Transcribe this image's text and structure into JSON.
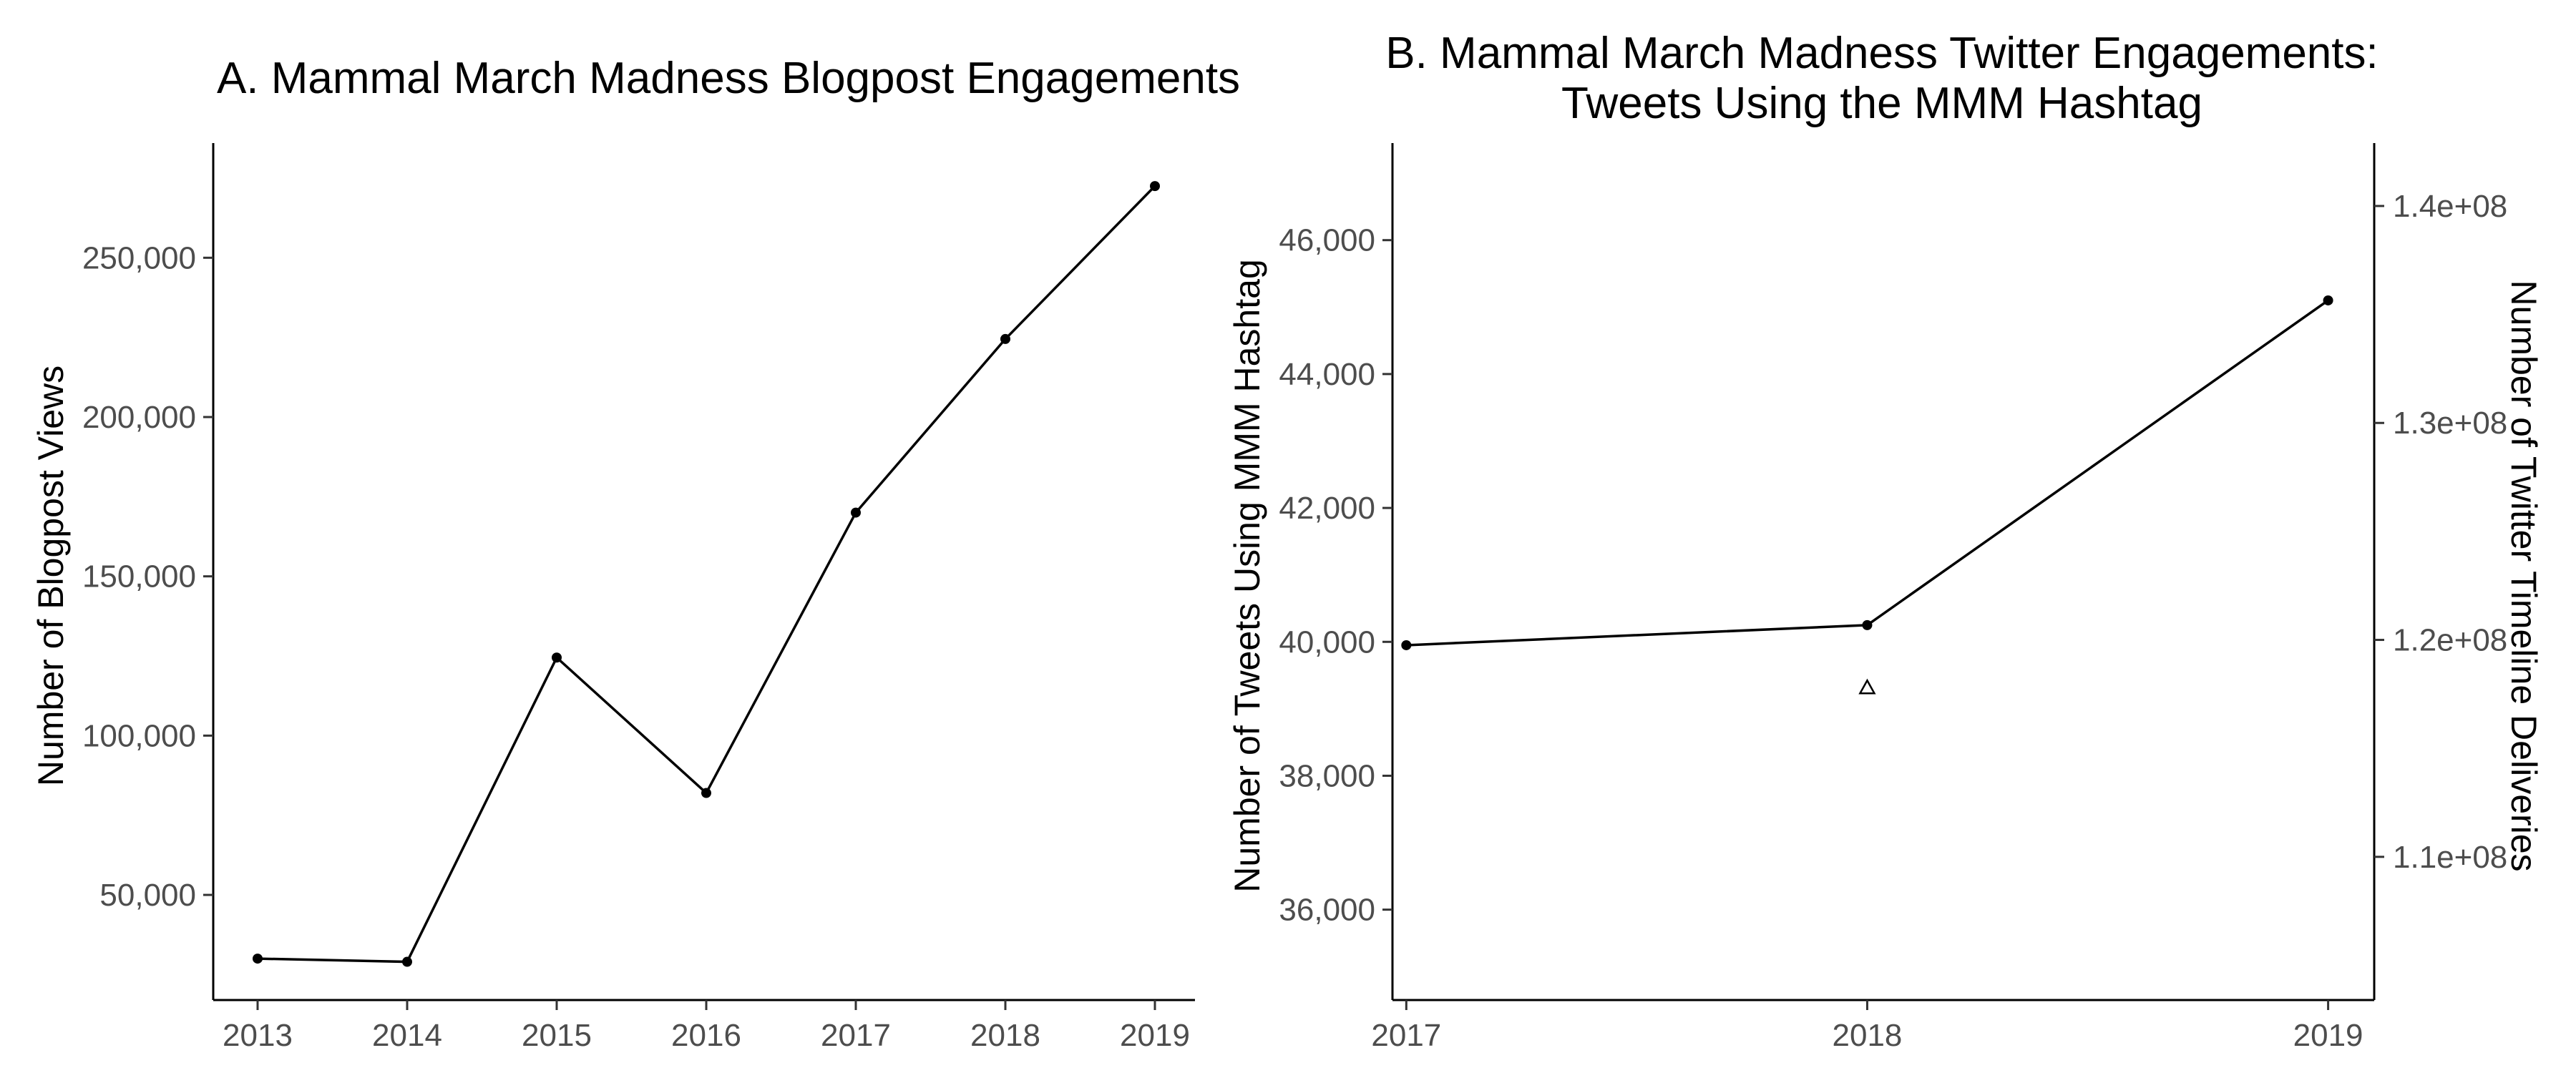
{
  "chart_data": [
    {
      "type": "line",
      "title": "A. Mammal March Madness Blogpost Engagements",
      "xlabel": "",
      "ylabel": "Number of Blogpost Views",
      "x": [
        "2013",
        "2014",
        "2015",
        "2016",
        "2017",
        "2018",
        "2019"
      ],
      "series": [
        {
          "values": [
            30000,
            29000,
            124500,
            82000,
            170000,
            224500,
            272500
          ]
        }
      ],
      "yticks": [
        50000,
        100000,
        150000,
        200000,
        250000
      ],
      "ytick_labels": [
        "50,000",
        "100,000",
        "150,000",
        "200,000",
        "250,000"
      ],
      "ylim": [
        17000,
        286000
      ],
      "grid": false,
      "legend": "none"
    },
    {
      "type": "line",
      "title_lines": [
        "B. Mammal March Madness Twitter Engagements:",
        "Tweets Using the MMM Hashtag"
      ],
      "xlabel": "",
      "ylabel": "Number of Tweets Using MMM Hashtag",
      "y2label": "Number of Twitter Timeline Deliveries",
      "x": [
        "2017",
        "2018",
        "2019"
      ],
      "x_values": [
        2017,
        2018,
        2019
      ],
      "series": [
        {
          "axis": "left",
          "marker": "point",
          "values": [
            39950,
            40250,
            45100
          ]
        },
        {
          "axis": "right",
          "marker": "triangle",
          "x": [
            2018
          ],
          "values": [
            117800000
          ]
        }
      ],
      "yticks": [
        36000,
        38000,
        40000,
        42000,
        44000,
        46000
      ],
      "ytick_labels": [
        "36,000",
        "38,000",
        "40,000",
        "42,000",
        "44,000",
        "46,000"
      ],
      "y2ticks": [
        110000000,
        120000000,
        130000000,
        140000000
      ],
      "y2tick_labels": [
        "1.1e+08",
        "1.2e+08",
        "1.3e+08",
        "1.4e+08"
      ],
      "ylim": [
        34650,
        47450
      ],
      "y2lim": [
        103400000,
        142900000
      ],
      "xlim": [
        2016.97,
        2019.1
      ],
      "grid": false,
      "legend": "none"
    }
  ]
}
